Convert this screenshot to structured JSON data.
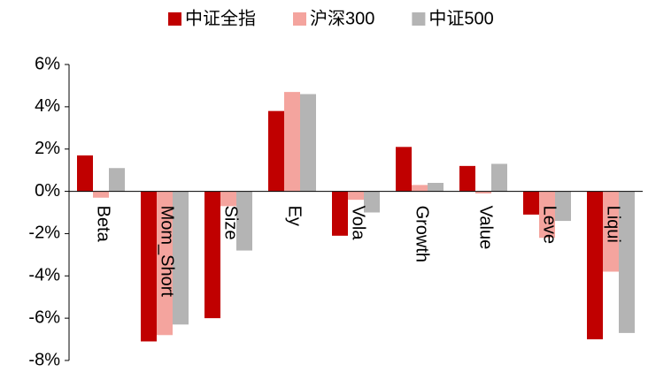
{
  "chart_data": {
    "type": "bar",
    "categories": [
      "Beta",
      "Mom_Short",
      "Size",
      "Ey",
      "Vola",
      "Growth",
      "Value",
      "Leve",
      "Liqui"
    ],
    "series": [
      {
        "name": "中证全指",
        "color": "#c00000",
        "values": [
          1.7,
          -7.1,
          -6.0,
          3.8,
          -2.1,
          2.1,
          1.2,
          -1.1,
          -7.0
        ]
      },
      {
        "name": "沪深300",
        "color": "#f4a49e",
        "values": [
          -0.3,
          -6.8,
          -0.7,
          4.7,
          -0.4,
          0.3,
          -0.1,
          -2.2,
          -3.8
        ]
      },
      {
        "name": "中证500",
        "color": "#b4b4b4",
        "values": [
          1.1,
          -6.3,
          -2.8,
          4.6,
          -1.0,
          0.4,
          1.3,
          -1.4,
          -6.7
        ]
      }
    ],
    "ylim": [
      -8,
      6
    ],
    "yticks": [
      {
        "value": -8,
        "label": "-8%"
      },
      {
        "value": -6,
        "label": "-6%"
      },
      {
        "value": -4,
        "label": "-4%"
      },
      {
        "value": -2,
        "label": "-2%"
      },
      {
        "value": 0,
        "label": "0%"
      },
      {
        "value": 2,
        "label": "2%"
      },
      {
        "value": 4,
        "label": "4%"
      },
      {
        "value": 6,
        "label": "6%"
      }
    ],
    "legend": "top"
  }
}
